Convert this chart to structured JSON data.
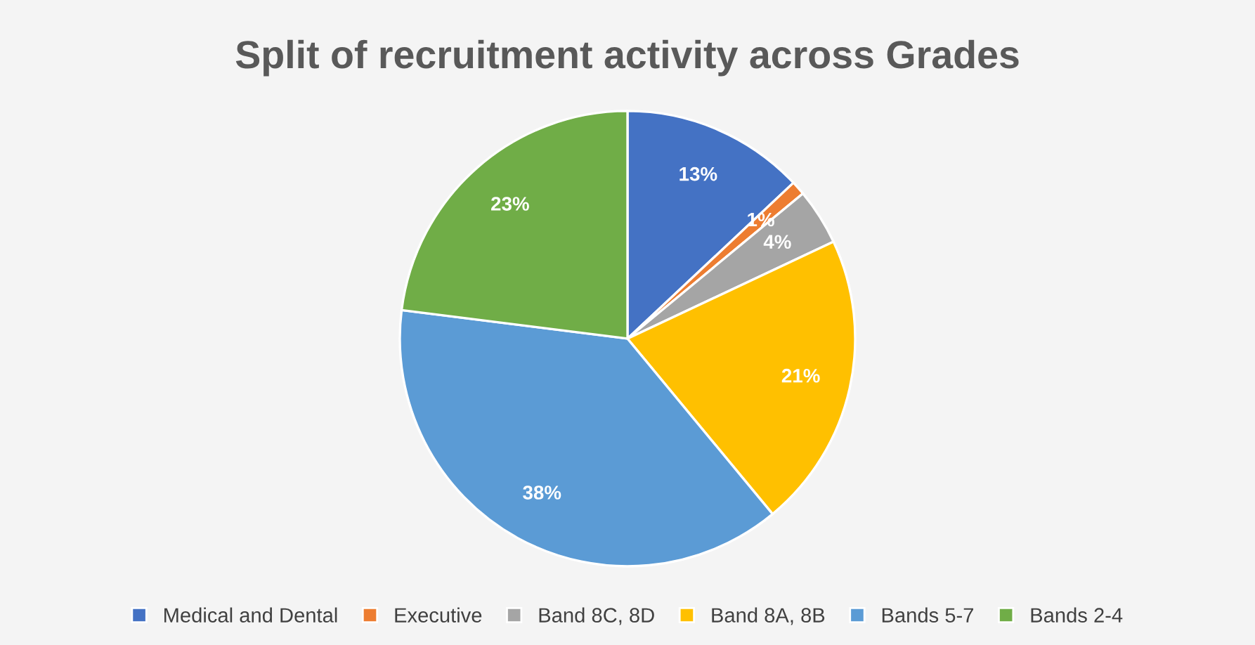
{
  "chart_data": {
    "type": "pie",
    "title": "Split of recruitment activity across Grades",
    "categories": [
      "Medical and Dental",
      "Executive",
      "Band 8C, 8D",
      "Band 8A, 8B",
      "Bands 5-7",
      "Bands 2-4"
    ],
    "values": [
      13,
      1,
      4,
      21,
      38,
      23
    ],
    "colors": [
      "#4472c4",
      "#ed7d31",
      "#a5a5a5",
      "#ffc000",
      "#5b9bd5",
      "#70ad47"
    ],
    "value_labels": [
      "13%",
      "1%",
      "4%",
      "21%",
      "38%",
      "23%"
    ],
    "legend": "bottom"
  }
}
